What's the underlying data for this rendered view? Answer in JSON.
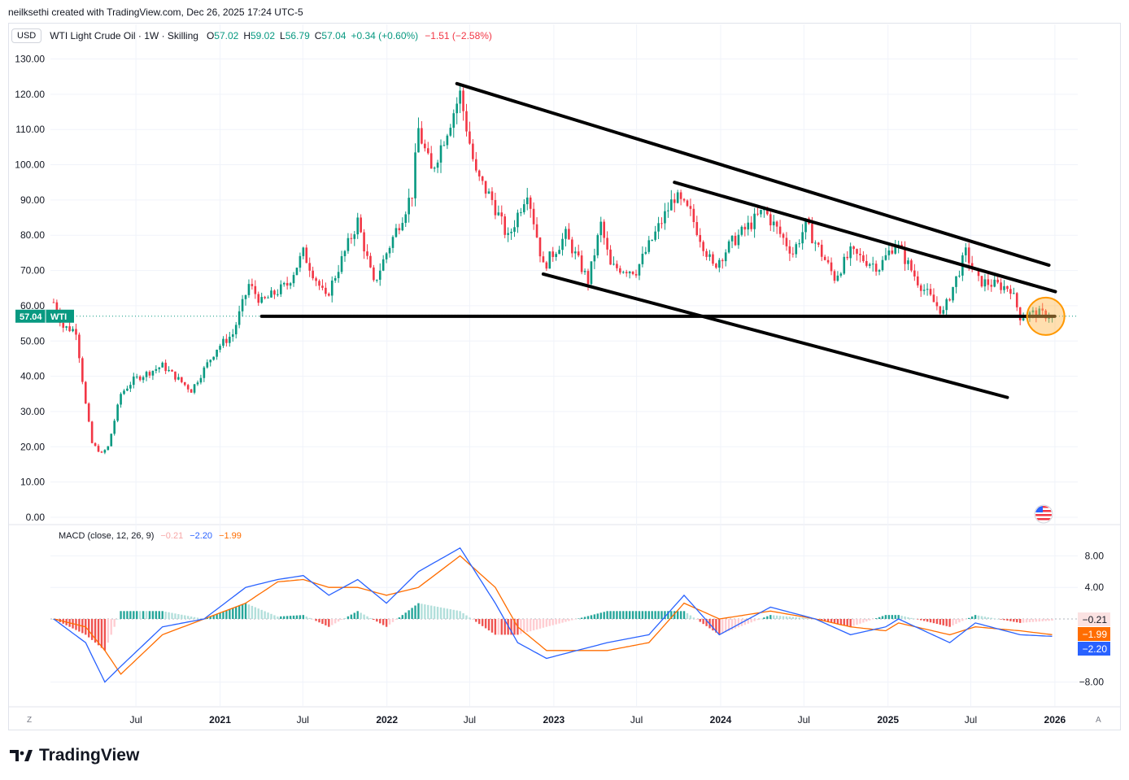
{
  "attribution": "neilksethi created with TradingView.com, Dec 26, 2025 17:24 UTC-5",
  "legend": {
    "currency": "USD",
    "title": "WTI Light Crude Oil · 1W · Skilling",
    "ohlc": [
      {
        "label": "O",
        "value": "57.02"
      },
      {
        "label": "H",
        "value": "59.02"
      },
      {
        "label": "L",
        "value": "56.79"
      },
      {
        "label": "C",
        "value": "57.04"
      }
    ],
    "change_week": "+0.34 (+0.60%)",
    "change_extra": "−1.51 (−2.58%)"
  },
  "macd_legend": {
    "label": "MACD (close, 12, 26, 9)",
    "hist": "−0.21",
    "macd": "−2.20",
    "signal": "−1.99"
  },
  "price_tag": {
    "value": "57.04",
    "label": "WTI"
  },
  "macd_tags": [
    {
      "value": "−0.21",
      "color": "#fbe2e2",
      "text_color": "#131722",
      "y": -0.21
    },
    {
      "value": "−1.99",
      "color": "#ff6d00",
      "text_color": "#ffffff",
      "y": -1.99
    },
    {
      "value": "−2.20",
      "color": "#2962ff",
      "text_color": "#ffffff",
      "y": -2.2
    }
  ],
  "colors": {
    "up": "#089981",
    "down": "#f23645",
    "macd": "#2962ff",
    "signal": "#ff6d00",
    "hist_pos": "#26a69a",
    "hist_neg": "#ef5350"
  },
  "footer": {
    "brand": "TradingView",
    "left_btn": "Z",
    "right_btn": "A"
  },
  "chart_data": {
    "type": "candlestick",
    "price_axis": {
      "min": 0,
      "max": 130,
      "ticks": [
        "130.00",
        "120.00",
        "110.00",
        "100.00",
        "90.00",
        "80.00",
        "70.00",
        "60.00",
        "50.00",
        "40.00",
        "30.00",
        "20.00",
        "10.00",
        "0.00"
      ]
    },
    "macd_axis": {
      "ticks": [
        {
          "label": "8.00",
          "v": 8
        },
        {
          "label": "4.00",
          "v": 4
        },
        {
          "label": "−8.00",
          "v": -8
        }
      ]
    },
    "x_range": [
      "2019-12-27",
      "2026-02-20"
    ],
    "x_ticks": [
      {
        "label": "Jul",
        "date": "2020-07-01"
      },
      {
        "label": "2021",
        "date": "2021-01-01"
      },
      {
        "label": "Jul",
        "date": "2021-07-01"
      },
      {
        "label": "2022",
        "date": "2022-01-01"
      },
      {
        "label": "Jul",
        "date": "2022-07-01"
      },
      {
        "label": "2023",
        "date": "2023-01-01"
      },
      {
        "label": "Jul",
        "date": "2023-07-01"
      },
      {
        "label": "2024",
        "date": "2024-01-01"
      },
      {
        "label": "Jul",
        "date": "2024-07-01"
      },
      {
        "label": "2025",
        "date": "2025-01-01"
      },
      {
        "label": "Jul",
        "date": "2025-07-01"
      },
      {
        "label": "2026",
        "date": "2026-01-01"
      }
    ],
    "price_anchors": [
      [
        "2020-01-03",
        61
      ],
      [
        "2020-01-24",
        54
      ],
      [
        "2020-02-21",
        53
      ],
      [
        "2020-03-13",
        32
      ],
      [
        "2020-03-27",
        21
      ],
      [
        "2020-04-17",
        18
      ],
      [
        "2020-05-01",
        20
      ],
      [
        "2020-05-29",
        35
      ],
      [
        "2020-06-26",
        39
      ],
      [
        "2020-08-28",
        43
      ],
      [
        "2020-10-30",
        36
      ],
      [
        "2020-12-25",
        48
      ],
      [
        "2021-01-29",
        52
      ],
      [
        "2021-03-05",
        66
      ],
      [
        "2021-04-02",
        61
      ],
      [
        "2021-05-28",
        66
      ],
      [
        "2021-07-02",
        75
      ],
      [
        "2021-08-20",
        62
      ],
      [
        "2021-10-29",
        84
      ],
      [
        "2021-12-03",
        66
      ],
      [
        "2021-12-31",
        75
      ],
      [
        "2022-02-25",
        92
      ],
      [
        "2022-03-11",
        110
      ],
      [
        "2022-04-08",
        98
      ],
      [
        "2022-06-10",
        120
      ],
      [
        "2022-07-15",
        97
      ],
      [
        "2022-08-19",
        90
      ],
      [
        "2022-09-23",
        79
      ],
      [
        "2022-11-04",
        93
      ],
      [
        "2022-12-09",
        71
      ],
      [
        "2023-01-27",
        80
      ],
      [
        "2023-03-17",
        67
      ],
      [
        "2023-04-14",
        83
      ],
      [
        "2023-05-05",
        71
      ],
      [
        "2023-06-30",
        70
      ],
      [
        "2023-09-22",
        91
      ],
      [
        "2023-10-27",
        86
      ],
      [
        "2023-12-15",
        71
      ],
      [
        "2024-01-26",
        78
      ],
      [
        "2024-04-05",
        87
      ],
      [
        "2024-06-07",
        75
      ],
      [
        "2024-07-05",
        83
      ],
      [
        "2024-09-06",
        68
      ],
      [
        "2024-10-11",
        75
      ],
      [
        "2024-12-13",
        71
      ],
      [
        "2025-01-17",
        78
      ],
      [
        "2025-03-07",
        67
      ],
      [
        "2025-04-11",
        61
      ],
      [
        "2025-05-02",
        58
      ],
      [
        "2025-06-20",
        75
      ],
      [
        "2025-07-18",
        67
      ],
      [
        "2025-09-26",
        65
      ],
      [
        "2025-10-17",
        57
      ],
      [
        "2025-11-21",
        58
      ],
      [
        "2025-12-26",
        57.04
      ]
    ],
    "macd_anchors": [
      [
        "2020-01-03",
        0,
        0
      ],
      [
        "2020-03-13",
        -3,
        -1
      ],
      [
        "2020-04-24",
        -8,
        -4
      ],
      [
        "2020-05-29",
        -6,
        -7
      ],
      [
        "2020-08-28",
        -1,
        -2
      ],
      [
        "2020-11-27",
        0,
        0
      ],
      [
        "2021-02-26",
        4,
        2
      ],
      [
        "2021-05-07",
        5,
        4.7
      ],
      [
        "2021-07-02",
        5.5,
        5
      ],
      [
        "2021-08-27",
        3,
        4
      ],
      [
        "2021-10-29",
        5,
        4
      ],
      [
        "2021-12-31",
        2,
        3
      ],
      [
        "2022-03-11",
        6,
        4
      ],
      [
        "2022-06-10",
        9,
        8
      ],
      [
        "2022-08-26",
        2,
        4
      ],
      [
        "2022-10-14",
        -3,
        -1
      ],
      [
        "2022-12-16",
        -5,
        -4
      ],
      [
        "2023-04-28",
        -3,
        -4
      ],
      [
        "2023-07-28",
        -2,
        -3
      ],
      [
        "2023-10-13",
        3,
        2
      ],
      [
        "2023-12-29",
        -2,
        0
      ],
      [
        "2024-04-19",
        1.5,
        1
      ],
      [
        "2024-07-26",
        0,
        0
      ],
      [
        "2024-10-11",
        -2,
        -1
      ],
      [
        "2024-12-27",
        -1,
        -1.5
      ],
      [
        "2025-01-24",
        0,
        -0.5
      ],
      [
        "2025-05-16",
        -3,
        -2
      ],
      [
        "2025-07-11",
        -0.5,
        -1
      ],
      [
        "2025-10-17",
        -2,
        -1.5
      ],
      [
        "2025-12-26",
        -2.2,
        -1.99
      ]
    ],
    "trendlines": [
      {
        "name": "upper-channel-line",
        "from": [
          "2022-06-03",
          123
        ],
        "to": [
          "2025-12-19",
          71.5
        ]
      },
      {
        "name": "middle-channel-line",
        "from": [
          "2023-09-22",
          95
        ],
        "to": [
          "2026-01-02",
          64
        ]
      },
      {
        "name": "lower-channel-line",
        "from": [
          "2022-12-09",
          69
        ],
        "to": [
          "2025-09-19",
          34
        ]
      },
      {
        "name": "support-line",
        "from": [
          "2021-04-02",
          57
        ],
        "to": [
          "2026-01-02",
          57
        ]
      }
    ],
    "highlight": {
      "date": "2025-12-12",
      "price": 57
    }
  }
}
